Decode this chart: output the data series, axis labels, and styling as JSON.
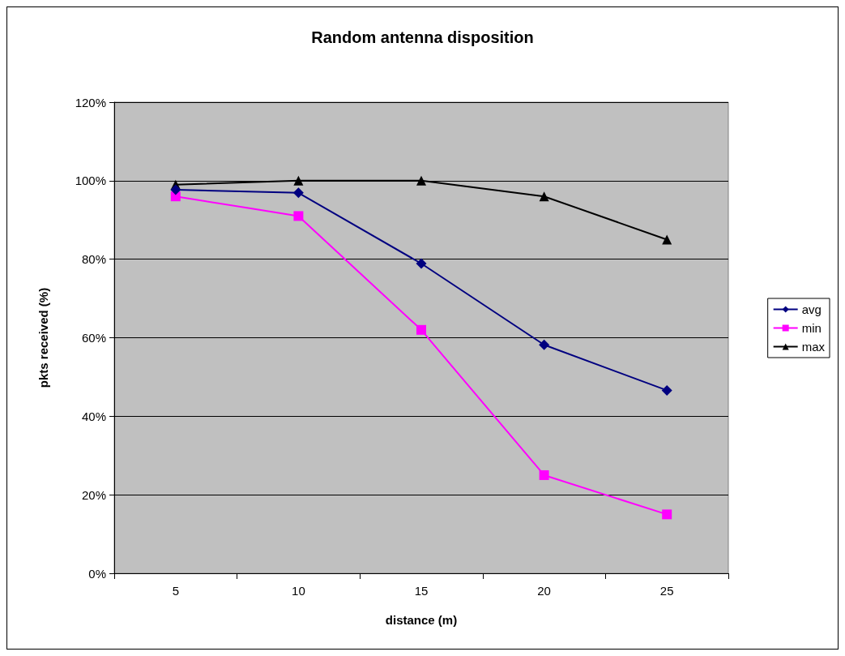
{
  "chart_data": {
    "type": "line",
    "title": "Random antenna disposition",
    "xlabel": "distance (m)",
    "ylabel": "pkts received (%)",
    "categories": [
      "5",
      "10",
      "15",
      "20",
      "25"
    ],
    "series": [
      {
        "name": "avg",
        "color": "#000080",
        "marker": "diamond",
        "values": [
          97.7,
          96.9,
          78.9,
          58.2,
          46.6
        ]
      },
      {
        "name": "min",
        "color": "#ff00ff",
        "marker": "square",
        "values": [
          96,
          91,
          62,
          25,
          15
        ]
      },
      {
        "name": "max",
        "color": "#000000",
        "marker": "triangle",
        "values": [
          99,
          100,
          100,
          96,
          85
        ]
      }
    ],
    "ylim": [
      0,
      120
    ],
    "yticks": [
      {
        "value": 0,
        "label": "0%"
      },
      {
        "value": 20,
        "label": "20%"
      },
      {
        "value": 40,
        "label": "40%"
      },
      {
        "value": 60,
        "label": "60%"
      },
      {
        "value": 80,
        "label": "80%"
      },
      {
        "value": 100,
        "label": "100%"
      },
      {
        "value": 120,
        "label": "120%"
      }
    ],
    "grid": "y",
    "legend": "right",
    "line_style": "solid"
  }
}
